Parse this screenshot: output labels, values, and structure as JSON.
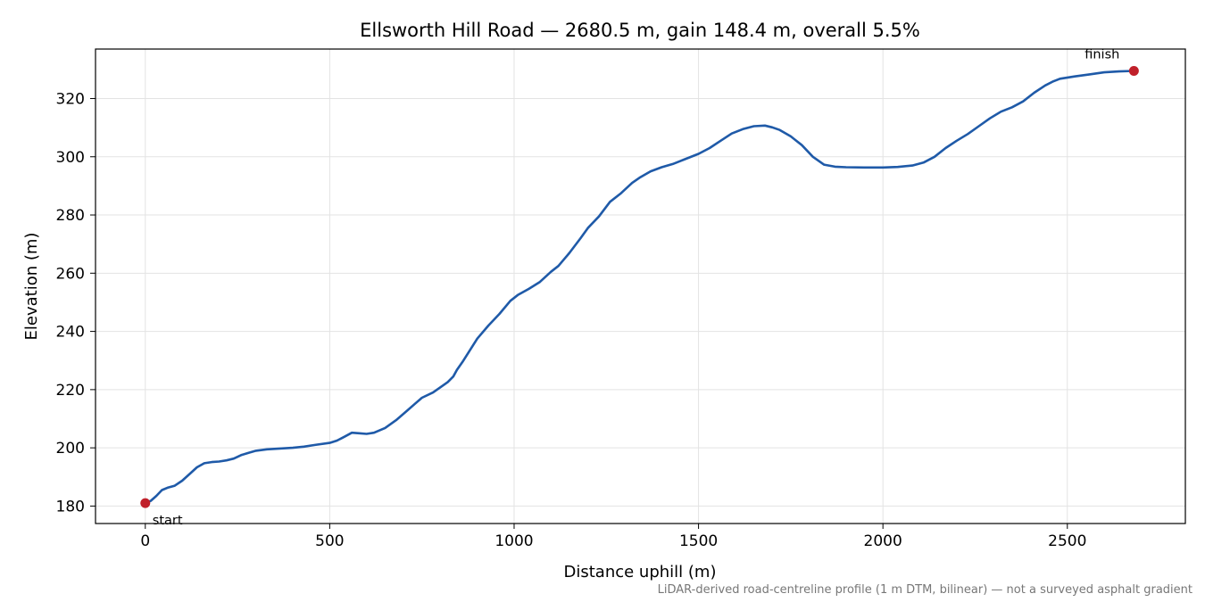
{
  "chart_data": {
    "type": "line",
    "title": "Ellsworth Hill Road — 2680.5 m, gain 148.4 m, overall 5.5%",
    "xlabel": "Distance uphill (m)",
    "ylabel": "Elevation (m)",
    "xlim": [
      -135,
      2820
    ],
    "ylim": [
      174,
      337
    ],
    "xticks": [
      0,
      500,
      1000,
      1500,
      2000,
      2500
    ],
    "yticks": [
      180,
      200,
      220,
      240,
      260,
      280,
      300,
      320
    ],
    "grid": true,
    "line_color": "#1f5aa8",
    "marker_color": "#c0202a",
    "series": [
      {
        "x": [
          0,
          15,
          30,
          45,
          60,
          80,
          100,
          120,
          140,
          160,
          180,
          200,
          220,
          240,
          260,
          280,
          300,
          330,
          360,
          400,
          430,
          460,
          500,
          520,
          540,
          560,
          580,
          600,
          620,
          650,
          680,
          710,
          730,
          750,
          780,
          800,
          820,
          835,
          845,
          860,
          880,
          900,
          930,
          960,
          990,
          1010,
          1040,
          1070,
          1100,
          1120,
          1150,
          1180,
          1200,
          1230,
          1260,
          1290,
          1320,
          1340,
          1370,
          1400,
          1430,
          1460,
          1500,
          1530,
          1560,
          1590,
          1620,
          1650,
          1680,
          1700,
          1720,
          1750,
          1780,
          1810,
          1840,
          1870,
          1900,
          1950,
          2000,
          2040,
          2080,
          2110,
          2140,
          2170,
          2200,
          2230,
          2260,
          2290,
          2320,
          2350,
          2380,
          2410,
          2440,
          2460,
          2480,
          2520,
          2560,
          2600,
          2640,
          2680.5
        ],
        "y": [
          181.0,
          181.8,
          183.5,
          185.5,
          186.3,
          187.0,
          188.7,
          191.0,
          193.3,
          194.7,
          195.1,
          195.3,
          195.7,
          196.3,
          197.5,
          198.3,
          199.0,
          199.5,
          199.7,
          200.0,
          200.4,
          201.0,
          201.7,
          202.5,
          203.8,
          205.2,
          205.0,
          204.8,
          205.2,
          206.8,
          209.5,
          212.8,
          215.0,
          217.2,
          219.0,
          220.8,
          222.6,
          224.5,
          226.8,
          229.5,
          233.5,
          237.5,
          242.0,
          246.0,
          250.5,
          252.5,
          254.6,
          257.0,
          260.5,
          262.5,
          267.0,
          272.0,
          275.5,
          279.5,
          284.5,
          287.5,
          291.0,
          292.8,
          295.0,
          296.4,
          297.5,
          299.0,
          301.0,
          303.0,
          305.5,
          308.0,
          309.5,
          310.5,
          310.7,
          310.1,
          309.2,
          307.0,
          304.0,
          300.0,
          297.3,
          296.6,
          296.4,
          296.3,
          296.3,
          296.5,
          297.0,
          298.0,
          300.0,
          303.0,
          305.5,
          307.8,
          310.5,
          313.2,
          315.5,
          317.0,
          319.0,
          322.0,
          324.5,
          325.8,
          326.8,
          327.6,
          328.3,
          329.0,
          329.3,
          329.5
        ]
      }
    ],
    "annotations": [
      {
        "text": "start",
        "x": 0,
        "y": 181.0
      },
      {
        "text": "finish",
        "x": 2680.5,
        "y": 329.5
      }
    ],
    "footnote": "LiDAR-derived road-centreline profile (1 m DTM, bilinear) — not a surveyed asphalt gradient"
  }
}
